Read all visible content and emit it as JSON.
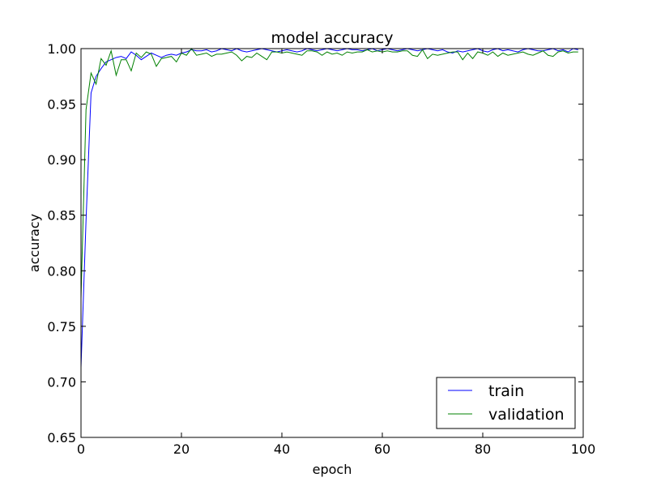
{
  "chart_data": {
    "type": "line",
    "title": "model accuracy",
    "xlabel": "epoch",
    "ylabel": "accuracy",
    "xlim": [
      0,
      100
    ],
    "ylim": [
      0.65,
      1.0
    ],
    "xticks": [
      "0",
      "20",
      "40",
      "60",
      "80",
      "100"
    ],
    "yticks": [
      "0.65",
      "0.70",
      "0.75",
      "0.80",
      "0.85",
      "0.90",
      "0.95",
      "1.00"
    ],
    "grid": false,
    "legend_position": "bottom-right",
    "series": [
      {
        "name": "train",
        "color": "#0000ff",
        "values": [
          0.713,
          0.845,
          0.96,
          0.975,
          0.982,
          0.988,
          0.99,
          0.992,
          0.993,
          0.991,
          0.997,
          0.994,
          0.99,
          0.993,
          0.996,
          0.994,
          0.992,
          0.994,
          0.995,
          0.994,
          0.996,
          0.997,
          0.999,
          0.998,
          0.998,
          0.999,
          0.997,
          0.998,
          1.0,
          0.999,
          0.998,
          1.0,
          0.998,
          0.997,
          0.998,
          0.999,
          1.0,
          0.999,
          0.998,
          0.997,
          0.998,
          0.999,
          0.998,
          0.997,
          0.998,
          1.0,
          0.999,
          0.998,
          0.999,
          1.0,
          0.999,
          0.998,
          0.999,
          1.0,
          0.999,
          0.999,
          0.998,
          0.999,
          1.0,
          0.998,
          0.999,
          1.0,
          0.999,
          0.998,
          0.999,
          1.0,
          0.999,
          0.998,
          0.999,
          1.0,
          0.999,
          0.998,
          0.999,
          0.997,
          0.996,
          0.998,
          0.997,
          0.998,
          0.999,
          1.0,
          0.998,
          0.997,
          0.999,
          1.0,
          0.998,
          0.999,
          0.998,
          0.997,
          0.999,
          1.0,
          0.999,
          0.998,
          0.998,
          0.999,
          1.0,
          0.998,
          0.999,
          0.997,
          1.0,
          0.999
        ]
      },
      {
        "name": "validation",
        "color": "#008000",
        "values": [
          0.775,
          0.945,
          0.978,
          0.968,
          0.991,
          0.985,
          0.998,
          0.976,
          0.99,
          0.99,
          0.98,
          0.996,
          0.992,
          0.997,
          0.995,
          0.984,
          0.991,
          0.992,
          0.993,
          0.988,
          0.996,
          0.994,
          1.0,
          0.994,
          0.995,
          0.996,
          0.993,
          0.995,
          0.995,
          0.996,
          0.997,
          0.994,
          0.989,
          0.993,
          0.992,
          0.996,
          0.993,
          0.99,
          0.997,
          0.997,
          0.996,
          0.997,
          0.996,
          0.995,
          0.994,
          0.998,
          0.998,
          0.997,
          0.994,
          0.997,
          0.995,
          0.996,
          0.994,
          0.997,
          0.996,
          0.997,
          0.997,
          0.999,
          0.997,
          0.998,
          0.997,
          0.998,
          0.997,
          0.997,
          0.998,
          0.998,
          0.994,
          0.993,
          0.999,
          0.991,
          0.995,
          0.994,
          0.995,
          0.996,
          0.997,
          0.997,
          0.99,
          0.996,
          0.991,
          0.997,
          0.996,
          0.994,
          0.997,
          0.993,
          0.996,
          0.994,
          0.995,
          0.996,
          0.997,
          0.995,
          0.994,
          0.996,
          0.998,
          0.994,
          0.993,
          0.997,
          0.998,
          0.996,
          0.997,
          0.997
        ]
      }
    ]
  }
}
